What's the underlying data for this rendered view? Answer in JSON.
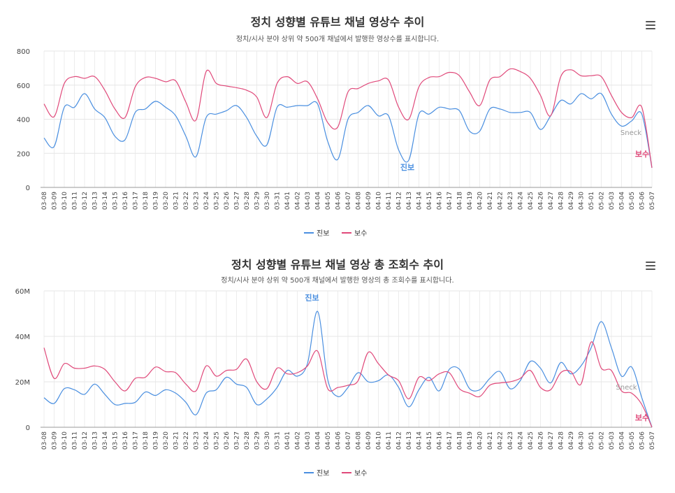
{
  "chart_data": [
    {
      "type": "line",
      "title": "정치 성향별 유튜브 채널 영상수 추이",
      "subtitle": "정치/시사 분야 상위 약 500개 채널에서 발행한 영상수를 표시합니다.",
      "y_tick_labels": [
        "0",
        "200",
        "400",
        "600",
        "800"
      ],
      "ylim": [
        0,
        800
      ],
      "categories": [
        "03-08",
        "03-09",
        "03-10",
        "03-11",
        "03-12",
        "03-13",
        "03-14",
        "03-15",
        "03-16",
        "03-17",
        "03-18",
        "03-19",
        "03-20",
        "03-21",
        "03-22",
        "03-23",
        "03-24",
        "03-25",
        "03-26",
        "03-27",
        "03-28",
        "03-29",
        "03-30",
        "03-31",
        "04-01",
        "04-02",
        "04-03",
        "04-04",
        "04-05",
        "04-06",
        "04-07",
        "04-08",
        "04-09",
        "04-10",
        "04-11",
        "04-12",
        "04-13",
        "04-14",
        "04-15",
        "04-16",
        "04-17",
        "04-18",
        "04-19",
        "04-20",
        "04-21",
        "04-22",
        "04-23",
        "04-24",
        "04-25",
        "04-26",
        "04-27",
        "04-28",
        "04-29",
        "04-30",
        "05-01",
        "05-02",
        "05-03",
        "05-04",
        "05-05",
        "05-06",
        "05-07"
      ],
      "series": [
        {
          "name": "진보",
          "color": "#4a8fe0",
          "values": [
            290,
            240,
            470,
            470,
            550,
            460,
            410,
            300,
            280,
            440,
            460,
            505,
            470,
            420,
            300,
            180,
            410,
            430,
            450,
            480,
            410,
            300,
            250,
            470,
            470,
            480,
            480,
            490,
            270,
            165,
            400,
            440,
            480,
            420,
            420,
            220,
            160,
            430,
            430,
            470,
            460,
            450,
            330,
            330,
            460,
            460,
            440,
            440,
            440,
            340,
            420,
            510,
            490,
            550,
            520,
            550,
            430,
            360,
            390,
            430,
            115
          ]
        },
        {
          "name": "보수",
          "color": "#e0497a",
          "values": [
            490,
            415,
            610,
            650,
            640,
            650,
            570,
            460,
            410,
            590,
            645,
            640,
            620,
            625,
            500,
            395,
            680,
            610,
            595,
            585,
            570,
            530,
            410,
            610,
            650,
            610,
            620,
            520,
            380,
            355,
            560,
            580,
            610,
            625,
            630,
            470,
            400,
            590,
            645,
            650,
            675,
            655,
            560,
            480,
            630,
            650,
            695,
            680,
            640,
            540,
            420,
            650,
            690,
            655,
            655,
            650,
            540,
            440,
            410,
            470,
            115
          ]
        }
      ],
      "annotations": [
        {
          "text": "진보",
          "category": "04-13",
          "series": "진보"
        },
        {
          "text": "보수",
          "category": "05-07",
          "series": "보수"
        },
        {
          "text": "Sneck",
          "category": "05-07",
          "series": "진보"
        }
      ],
      "grid": true,
      "legend": "bottom-center"
    },
    {
      "type": "line",
      "title": "정치 성향별 유튜브 채널 영상 총 조회수 추이",
      "subtitle": "정치/시사 분야 상위 약 500개 채널에서 발행한 영상의 총 조회수를 표시합니다.",
      "y_tick_labels": [
        "0",
        "20M",
        "40M",
        "60M"
      ],
      "ylim": [
        0,
        60000000
      ],
      "categories": [
        "03-08",
        "03-09",
        "03-10",
        "03-11",
        "03-12",
        "03-13",
        "03-14",
        "03-15",
        "03-16",
        "03-17",
        "03-18",
        "03-19",
        "03-20",
        "03-21",
        "03-22",
        "03-23",
        "03-24",
        "03-25",
        "03-26",
        "03-27",
        "03-28",
        "03-29",
        "03-30",
        "03-31",
        "04-01",
        "04-02",
        "04-03",
        "04-04",
        "04-05",
        "04-06",
        "04-07",
        "04-08",
        "04-09",
        "04-10",
        "04-11",
        "04-12",
        "04-13",
        "04-14",
        "04-15",
        "04-16",
        "04-17",
        "04-18",
        "04-19",
        "04-20",
        "04-21",
        "04-22",
        "04-23",
        "04-24",
        "04-25",
        "04-26",
        "04-27",
        "04-28",
        "04-29",
        "04-30",
        "05-01",
        "05-02",
        "05-03",
        "05-04",
        "05-05",
        "05-06",
        "05-07"
      ],
      "series": [
        {
          "name": "진보",
          "color": "#4a8fe0",
          "values": [
            13000000,
            10500000,
            17000000,
            16500000,
            14500000,
            19000000,
            14500000,
            10000000,
            10500000,
            11000000,
            15500000,
            14000000,
            16500000,
            15000000,
            11000000,
            5500000,
            15000000,
            16500000,
            22000000,
            19000000,
            17500000,
            10000000,
            12500000,
            17500000,
            25000000,
            22500000,
            28000000,
            51000000,
            21000000,
            13500000,
            17500000,
            24000000,
            20000000,
            20500000,
            23000000,
            17500000,
            9000000,
            16500000,
            22000000,
            16000000,
            25500000,
            25500000,
            17000000,
            16500000,
            21500000,
            24500000,
            17000000,
            20500000,
            29000000,
            26000000,
            19500000,
            28500000,
            23500000,
            27000000,
            35000000,
            46500000,
            35000000,
            22500000,
            26500000,
            13000000,
            0
          ]
        },
        {
          "name": "보수",
          "color": "#e0497a",
          "values": [
            35000000,
            21500000,
            28000000,
            26000000,
            26000000,
            27000000,
            25500000,
            20000000,
            16000000,
            21500000,
            22000000,
            26500000,
            24500000,
            24000000,
            19000000,
            16000000,
            27000000,
            22500000,
            25000000,
            25500000,
            30000000,
            20000000,
            17000000,
            26000000,
            23500000,
            24000000,
            27000000,
            33500000,
            17000000,
            17500000,
            18500000,
            20500000,
            33000000,
            28000000,
            23000000,
            20500000,
            12500000,
            22000000,
            20500000,
            23500000,
            24000000,
            17000000,
            15000000,
            13500000,
            18500000,
            19500000,
            20000000,
            21500000,
            25000000,
            17500000,
            16500000,
            24000000,
            24500000,
            19000000,
            37500000,
            26000000,
            25000000,
            16000000,
            15000000,
            10000000,
            0
          ]
        }
      ],
      "annotations": [
        {
          "text": "진보",
          "category": "04-04",
          "series": "진보"
        },
        {
          "text": "보수",
          "category": "05-07",
          "series": "보수"
        },
        {
          "text": "Sneck",
          "category": "05-06",
          "series": "진보"
        }
      ],
      "grid": true,
      "legend": "bottom-center"
    }
  ]
}
